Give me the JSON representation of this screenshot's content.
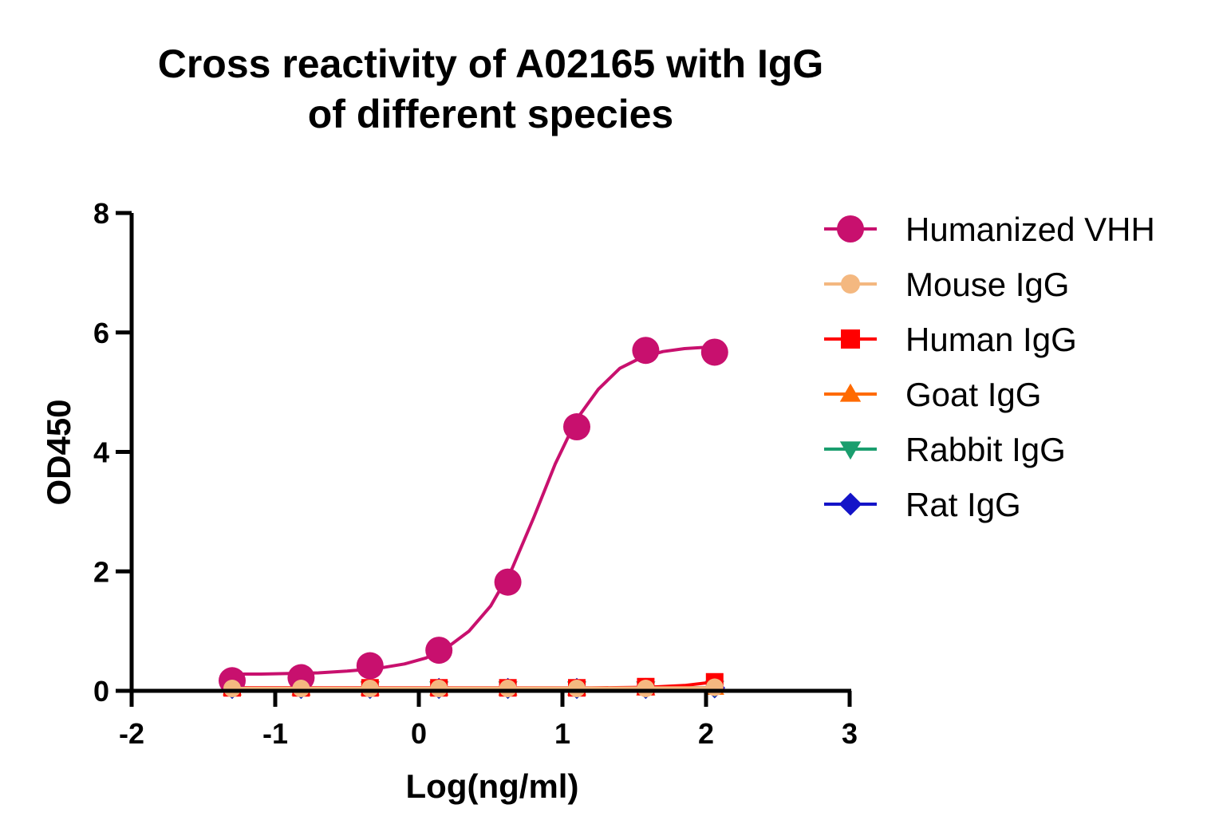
{
  "chart_data": {
    "type": "scatter",
    "title_lines": [
      "Cross reactivity of A02165 with IgG",
      "of different species"
    ],
    "xlabel": "Log(ng/ml)",
    "ylabel": "OD450",
    "xlim": [
      -2,
      3
    ],
    "ylim": [
      0,
      8
    ],
    "xticks": [
      -2,
      -1,
      0,
      1,
      2,
      3
    ],
    "yticks": [
      0,
      2,
      4,
      6,
      8
    ],
    "x": [
      -1.3,
      -0.82,
      -0.34,
      0.14,
      0.62,
      1.1,
      1.58,
      2.06
    ],
    "legend_position": "right",
    "series": [
      {
        "name": "Humanized VHH",
        "marker": "circle",
        "color": "#c8106e",
        "size": "large",
        "values": [
          0.17,
          0.22,
          0.42,
          0.68,
          1.82,
          4.42,
          5.7,
          5.67
        ],
        "fit": [
          [
            -1.3,
            0.28
          ],
          [
            -1.1,
            0.28
          ],
          [
            -0.9,
            0.29
          ],
          [
            -0.7,
            0.3
          ],
          [
            -0.5,
            0.33
          ],
          [
            -0.3,
            0.37
          ],
          [
            -0.1,
            0.45
          ],
          [
            0.05,
            0.55
          ],
          [
            0.2,
            0.73
          ],
          [
            0.35,
            1.0
          ],
          [
            0.5,
            1.42
          ],
          [
            0.65,
            2.05
          ],
          [
            0.8,
            2.9
          ],
          [
            0.95,
            3.8
          ],
          [
            1.1,
            4.55
          ],
          [
            1.25,
            5.05
          ],
          [
            1.4,
            5.4
          ],
          [
            1.55,
            5.58
          ],
          [
            1.7,
            5.68
          ],
          [
            1.85,
            5.73
          ],
          [
            2.06,
            5.76
          ]
        ]
      },
      {
        "name": "Mouse IgG",
        "marker": "circle",
        "color": "#f4b880",
        "size": "small",
        "values": [
          0.04,
          0.04,
          0.04,
          0.04,
          0.04,
          0.04,
          0.04,
          0.06
        ],
        "fit": [
          [
            -1.3,
            0.04
          ],
          [
            2.06,
            0.05
          ]
        ]
      },
      {
        "name": "Human IgG",
        "marker": "square",
        "color": "#ff0000",
        "size": "small",
        "values": [
          0.05,
          0.05,
          0.05,
          0.05,
          0.05,
          0.05,
          0.07,
          0.15
        ],
        "fit": [
          [
            -1.3,
            0.05
          ],
          [
            1.2,
            0.05
          ],
          [
            1.6,
            0.06
          ],
          [
            1.85,
            0.09
          ],
          [
            2.06,
            0.15
          ]
        ]
      },
      {
        "name": "Goat IgG",
        "marker": "triangle-up",
        "color": "#ff6a00",
        "size": "small",
        "values": [
          0.04,
          0.04,
          0.04,
          0.04,
          0.04,
          0.04,
          0.04,
          0.05
        ],
        "fit": [
          [
            -1.3,
            0.04
          ],
          [
            2.06,
            0.05
          ]
        ]
      },
      {
        "name": "Rabbit IgG",
        "marker": "triangle-down",
        "color": "#1a9e6e",
        "size": "small",
        "values": [
          0.04,
          0.04,
          0.04,
          0.04,
          0.04,
          0.04,
          0.04,
          0.05
        ],
        "fit": [
          [
            -1.3,
            0.04
          ],
          [
            2.06,
            0.05
          ]
        ]
      },
      {
        "name": "Rat IgG",
        "marker": "diamond",
        "color": "#1414c8",
        "size": "small",
        "values": [
          0.04,
          0.04,
          0.04,
          0.04,
          0.04,
          0.04,
          0.04,
          0.05
        ],
        "fit": [
          [
            -1.3,
            0.04
          ],
          [
            2.06,
            0.05
          ]
        ]
      }
    ]
  }
}
